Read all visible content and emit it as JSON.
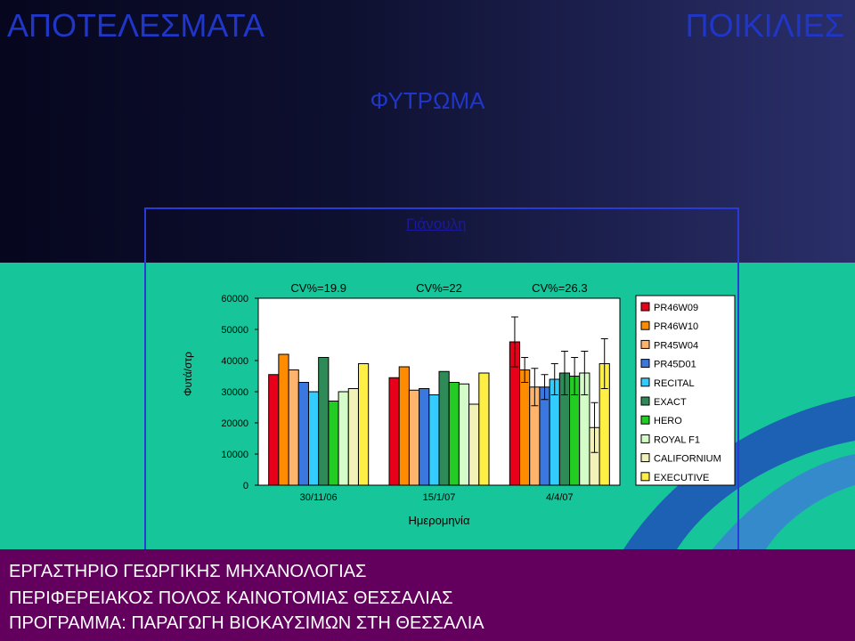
{
  "header": {
    "left_title": "ΑΠΟΤΕΛΕΣΜΑΤΑ",
    "right_title": "ΠΟΙΚΙΛΙΕΣ",
    "subtitle": "ΦΥΤΡΩΜΑ",
    "location": "Γιάνουλη"
  },
  "chart_data": {
    "type": "bar",
    "xlabel": "Ημερομηνία",
    "ylabel": "Φυτά/στρ",
    "ylim": [
      0,
      60000
    ],
    "yticks": [
      "60000",
      "50000",
      "40000",
      "30000",
      "20000",
      "10000",
      "0"
    ],
    "grid": false,
    "legend_position": "right",
    "categories": [
      "30/11/06",
      "15/1/07",
      "4/4/07"
    ],
    "annotations": [
      "CV%=19.9",
      "CV%=22",
      "CV%=26.3"
    ],
    "series": [
      {
        "name": "PR46W09",
        "color": "#e8001a",
        "values": [
          35500,
          34500,
          46000
        ],
        "errors": [
          null,
          null,
          8000
        ]
      },
      {
        "name": "PR46W10",
        "color": "#ff8c00",
        "values": [
          42000,
          38000,
          37000
        ],
        "errors": [
          null,
          null,
          4000
        ]
      },
      {
        "name": "PR45W04",
        "color": "#ffb46b",
        "values": [
          37000,
          30500,
          31500
        ],
        "errors": [
          null,
          null,
          6000
        ]
      },
      {
        "name": "PR45D01",
        "color": "#3a78e0",
        "values": [
          33000,
          31000,
          31500
        ],
        "errors": [
          null,
          null,
          4000
        ]
      },
      {
        "name": "RECITAL",
        "color": "#33ccff",
        "values": [
          30000,
          29000,
          34000
        ],
        "errors": [
          null,
          null,
          5000
        ]
      },
      {
        "name": "EXACT",
        "color": "#2e8b57",
        "values": [
          41000,
          36500,
          36000
        ],
        "errors": [
          null,
          null,
          7000
        ]
      },
      {
        "name": "HERO",
        "color": "#22cc22",
        "values": [
          27000,
          33000,
          35000
        ],
        "errors": [
          null,
          null,
          6000
        ]
      },
      {
        "name": "ROYAL F1",
        "color": "#d4fcc8",
        "values": [
          30000,
          32500,
          36000
        ],
        "errors": [
          null,
          null,
          7000
        ]
      },
      {
        "name": "CALIFORNIUM",
        "color": "#f2f2b8",
        "values": [
          31000,
          26000,
          18500
        ],
        "errors": [
          null,
          null,
          8000
        ]
      },
      {
        "name": "EXECUTIVE",
        "color": "#ffef44",
        "values": [
          39000,
          36000,
          39000
        ],
        "errors": [
          null,
          null,
          8000
        ]
      }
    ]
  },
  "footer": {
    "line1": "ΕΡΓΑΣΤΗΡΙΟ ΓΕΩΡΓΙΚΗΣ ΜΗΧΑΝΟΛΟΓΙΑΣ",
    "line2": "ΠΕΡΙΦΕΡΕΙΑΚΟΣ ΠΟΛΟΣ ΚΑΙΝΟΤΟΜΙΑΣ ΘΕΣΣΑΛΙΑΣ",
    "line3": "ΠΡΟΓΡΑΜΜΑ: ΠΑΡΑΓΩΓΗ ΒΙΟΚΑΥΣΙΜΩΝ ΣΤΗ ΘΕΣΣΑΛΙΑ"
  }
}
